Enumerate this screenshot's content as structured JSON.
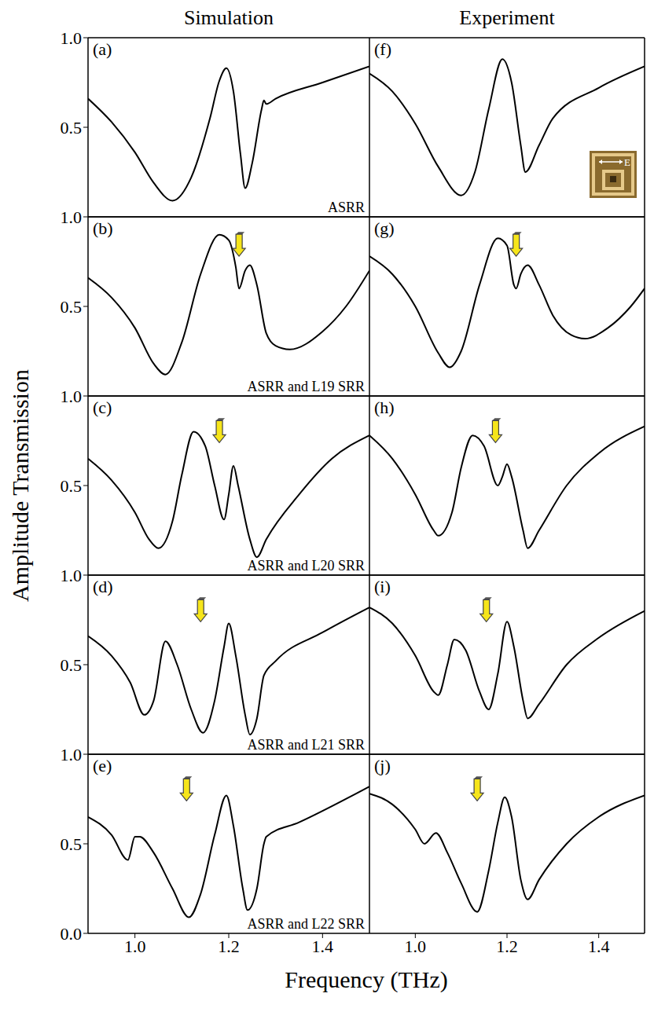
{
  "column_titles": [
    "Simulation",
    "Experiment"
  ],
  "y_label": "Amplitude Transmission",
  "x_label": "Frequency (THz)",
  "chart_data": [
    {
      "type": "line",
      "panel": "(a)",
      "annotation": "ASRR",
      "color": "#000000",
      "xlim": [
        0.9,
        1.5
      ],
      "ylim": [
        0,
        1
      ],
      "yticks": [
        0.5,
        {
          "value": 1,
          "label": "1.0"
        }
      ],
      "tick_labels": "y",
      "x": [
        0.9,
        0.95,
        1.0,
        1.04,
        1.08,
        1.12,
        1.16,
        1.18,
        1.195,
        1.21,
        1.225,
        1.235,
        1.25,
        1.27,
        1.275,
        1.28,
        1.3,
        1.4,
        1.5
      ],
      "values": [
        0.66,
        0.53,
        0.36,
        0.19,
        0.09,
        0.22,
        0.55,
        0.76,
        0.83,
        0.7,
        0.35,
        0.16,
        0.3,
        0.6,
        0.65,
        0.63,
        0.66,
        0.75,
        0.84
      ]
    },
    {
      "type": "line",
      "panel": "(b)",
      "annotation": "ASRR and L19 SRR",
      "color": "#000000",
      "xlim": [
        0.9,
        1.5
      ],
      "ylim": [
        0,
        1
      ],
      "yticks": [
        0.5,
        {
          "value": 1,
          "label": "1.0"
        }
      ],
      "tick_labels": "y",
      "arrow": {
        "x": 1.222,
        "y": 0.78
      },
      "x": [
        0.9,
        0.95,
        1.0,
        1.04,
        1.065,
        1.1,
        1.14,
        1.18,
        1.2,
        1.215,
        1.222,
        1.235,
        1.245,
        1.26,
        1.28,
        1.3,
        1.33,
        1.4,
        1.45,
        1.5
      ],
      "values": [
        0.66,
        0.55,
        0.38,
        0.18,
        0.12,
        0.3,
        0.68,
        0.9,
        0.87,
        0.72,
        0.6,
        0.7,
        0.73,
        0.62,
        0.35,
        0.28,
        0.26,
        0.36,
        0.5,
        0.7
      ]
    },
    {
      "type": "line",
      "panel": "(c)",
      "annotation": "ASRR and L20 SRR",
      "color": "#000000",
      "xlim": [
        0.9,
        1.5
      ],
      "ylim": [
        0,
        1
      ],
      "yticks": [
        0.5,
        {
          "value": 1,
          "label": "1.0"
        }
      ],
      "tick_labels": "y",
      "arrow": {
        "x": 1.18,
        "y": 0.74
      },
      "x": [
        0.9,
        0.95,
        1.0,
        1.03,
        1.05,
        1.08,
        1.1,
        1.125,
        1.15,
        1.17,
        1.19,
        1.2,
        1.21,
        1.22,
        1.245,
        1.26,
        1.28,
        1.35,
        1.42,
        1.5
      ],
      "values": [
        0.65,
        0.53,
        0.35,
        0.2,
        0.15,
        0.3,
        0.56,
        0.8,
        0.72,
        0.5,
        0.31,
        0.45,
        0.61,
        0.5,
        0.2,
        0.1,
        0.2,
        0.45,
        0.65,
        0.78
      ]
    },
    {
      "type": "line",
      "panel": "(d)",
      "annotation": "ASRR and L21 SRR",
      "color": "#000000",
      "xlim": [
        0.9,
        1.5
      ],
      "ylim": [
        0,
        1
      ],
      "yticks": [
        0.5,
        {
          "value": 1,
          "label": "1.0"
        }
      ],
      "tick_labels": "y",
      "arrow": {
        "x": 1.14,
        "y": 0.74
      },
      "x": [
        0.9,
        0.95,
        0.99,
        1.02,
        1.04,
        1.065,
        1.09,
        1.12,
        1.145,
        1.17,
        1.19,
        1.2,
        1.215,
        1.235,
        1.245,
        1.26,
        1.275,
        1.3,
        1.4,
        1.5
      ],
      "values": [
        0.66,
        0.55,
        0.4,
        0.22,
        0.3,
        0.63,
        0.5,
        0.25,
        0.12,
        0.3,
        0.6,
        0.73,
        0.55,
        0.22,
        0.11,
        0.2,
        0.44,
        0.52,
        0.68,
        0.82
      ]
    },
    {
      "type": "line",
      "panel": "(e)",
      "annotation": "ASRR and L22 SRR",
      "color": "#000000",
      "xlim": [
        0.9,
        1.5
      ],
      "ylim": [
        0,
        1
      ],
      "yticks": [
        {
          "value": 0,
          "label": "0.0"
        },
        0.5,
        {
          "value": 1,
          "label": "1.0"
        }
      ],
      "xticks": [
        {
          "value": 1,
          "label": "1.0"
        },
        1.2,
        1.4
      ],
      "tick_labels": true,
      "arrow": {
        "x": 1.11,
        "y": 0.74
      },
      "x": [
        0.9,
        0.95,
        0.985,
        1.0,
        1.01,
        1.04,
        1.08,
        1.115,
        1.14,
        1.17,
        1.195,
        1.21,
        1.23,
        1.24,
        1.26,
        1.275,
        1.28,
        1.35,
        1.5
      ],
      "values": [
        0.65,
        0.55,
        0.41,
        0.54,
        0.54,
        0.45,
        0.25,
        0.09,
        0.22,
        0.55,
        0.77,
        0.6,
        0.25,
        0.13,
        0.25,
        0.5,
        0.54,
        0.62,
        0.82
      ]
    },
    {
      "type": "line",
      "panel": "(f)",
      "inset_label": "E",
      "color": "#000000",
      "xlim": [
        0.9,
        1.5
      ],
      "ylim": [
        0,
        1
      ],
      "tick_labels": false,
      "x": [
        0.9,
        0.95,
        1.0,
        1.05,
        1.1,
        1.13,
        1.16,
        1.19,
        1.21,
        1.23,
        1.24,
        1.27,
        1.3,
        1.4,
        1.5
      ],
      "values": [
        0.8,
        0.7,
        0.52,
        0.28,
        0.12,
        0.25,
        0.6,
        0.88,
        0.75,
        0.4,
        0.25,
        0.4,
        0.55,
        0.72,
        0.84
      ]
    },
    {
      "type": "line",
      "panel": "(g)",
      "color": "#000000",
      "xlim": [
        0.9,
        1.5
      ],
      "ylim": [
        0,
        1
      ],
      "tick_labels": false,
      "arrow": {
        "x": 1.22,
        "y": 0.78
      },
      "x": [
        0.9,
        0.95,
        1.0,
        1.05,
        1.075,
        1.1,
        1.14,
        1.18,
        1.2,
        1.215,
        1.22,
        1.23,
        1.245,
        1.27,
        1.3,
        1.34,
        1.37,
        1.42,
        1.47,
        1.5
      ],
      "values": [
        0.78,
        0.68,
        0.5,
        0.24,
        0.16,
        0.25,
        0.62,
        0.88,
        0.84,
        0.62,
        0.6,
        0.68,
        0.73,
        0.62,
        0.45,
        0.34,
        0.32,
        0.38,
        0.5,
        0.6
      ]
    },
    {
      "type": "line",
      "panel": "(h)",
      "color": "#000000",
      "xlim": [
        0.9,
        1.5
      ],
      "ylim": [
        0,
        1
      ],
      "tick_labels": false,
      "arrow": {
        "x": 1.175,
        "y": 0.74
      },
      "x": [
        0.9,
        0.95,
        1.0,
        1.04,
        1.05,
        1.08,
        1.1,
        1.125,
        1.15,
        1.18,
        1.19,
        1.2,
        1.21,
        1.235,
        1.245,
        1.27,
        1.33,
        1.4,
        1.5
      ],
      "values": [
        0.78,
        0.65,
        0.45,
        0.25,
        0.22,
        0.35,
        0.6,
        0.78,
        0.72,
        0.5,
        0.55,
        0.62,
        0.55,
        0.25,
        0.15,
        0.25,
        0.5,
        0.68,
        0.83
      ]
    },
    {
      "type": "line",
      "panel": "(i)",
      "color": "#000000",
      "xlim": [
        0.9,
        1.5
      ],
      "ylim": [
        0,
        1
      ],
      "tick_labels": false,
      "arrow": {
        "x": 1.155,
        "y": 0.74
      },
      "x": [
        0.9,
        0.95,
        1.0,
        1.04,
        1.05,
        1.07,
        1.085,
        1.11,
        1.14,
        1.16,
        1.18,
        1.2,
        1.215,
        1.235,
        1.245,
        1.27,
        1.33,
        1.4,
        1.5
      ],
      "values": [
        0.82,
        0.73,
        0.55,
        0.35,
        0.33,
        0.5,
        0.64,
        0.58,
        0.35,
        0.25,
        0.45,
        0.74,
        0.6,
        0.3,
        0.2,
        0.28,
        0.5,
        0.65,
        0.8
      ]
    },
    {
      "type": "line",
      "panel": "(j)",
      "color": "#000000",
      "xlim": [
        0.9,
        1.5
      ],
      "ylim": [
        0,
        1
      ],
      "xticks": [
        {
          "value": 1,
          "label": "1.0"
        },
        1.2,
        1.4
      ],
      "tick_labels": "x",
      "arrow": {
        "x": 1.135,
        "y": 0.74
      },
      "x": [
        0.9,
        0.95,
        1.0,
        1.02,
        1.045,
        1.07,
        1.1,
        1.135,
        1.16,
        1.18,
        1.195,
        1.21,
        1.23,
        1.245,
        1.27,
        1.33,
        1.4,
        1.5
      ],
      "values": [
        0.78,
        0.72,
        0.58,
        0.5,
        0.56,
        0.45,
        0.28,
        0.12,
        0.35,
        0.62,
        0.76,
        0.65,
        0.3,
        0.19,
        0.3,
        0.5,
        0.65,
        0.77
      ]
    }
  ]
}
